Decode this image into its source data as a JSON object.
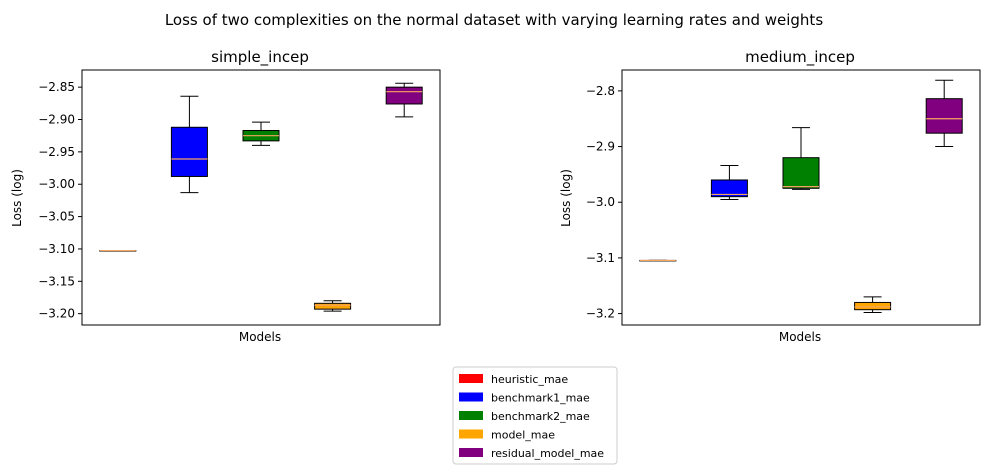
{
  "suptitle": "Loss of two complexities on the normal dataset with varying learning rates and weights",
  "legend": [
    {
      "label": "heuristic_mae",
      "color": "#ff0000"
    },
    {
      "label": "benchmark1_mae",
      "color": "#0000ff"
    },
    {
      "label": "benchmark2_mae",
      "color": "#008000"
    },
    {
      "label": "model_mae",
      "color": "#ffa500"
    },
    {
      "label": "residual_model_mae",
      "color": "#800080"
    }
  ],
  "median_color": "#f4a460",
  "chart_data": [
    {
      "type": "box",
      "title": "simple_incep",
      "xlabel": "Models",
      "ylabel": "Loss (log)",
      "ylim": [
        -3.2175,
        -2.8235
      ],
      "yticks": [
        -2.85,
        -2.9,
        -2.95,
        -3.0,
        -3.05,
        -3.1,
        -3.15,
        -3.2
      ],
      "ytick_labels": [
        "−2.85",
        "−2.90",
        "−2.95",
        "−3.00",
        "−3.05",
        "−3.10",
        "−3.15",
        "−3.20"
      ],
      "boxes": [
        {
          "name": "heuristic_mae",
          "color": "#ff0000",
          "whislo": -3.1025,
          "q1": -3.1025,
          "med": -3.1025,
          "q3": -3.1025,
          "whishi": -3.1025
        },
        {
          "name": "benchmark1_mae",
          "color": "#0000ff",
          "whislo": -3.013,
          "q1": -2.988,
          "med": -2.961,
          "q3": -2.912,
          "whishi": -2.864
        },
        {
          "name": "benchmark2_mae",
          "color": "#008000",
          "whislo": -2.94,
          "q1": -2.933,
          "med": -2.925,
          "q3": -2.917,
          "whishi": -2.904
        },
        {
          "name": "model_mae",
          "color": "#ffa500",
          "whislo": -3.196,
          "q1": -3.193,
          "med": -3.187,
          "q3": -3.184,
          "whishi": -3.18
        },
        {
          "name": "residual_model_mae",
          "color": "#800080",
          "whislo": -2.896,
          "q1": -2.876,
          "med": -2.857,
          "q3": -2.85,
          "whishi": -2.844
        }
      ]
    },
    {
      "type": "box",
      "title": "medium_incep",
      "xlabel": "Models",
      "ylabel": "Loss (log)",
      "ylim": [
        -3.2205,
        -2.7625
      ],
      "yticks": [
        -2.8,
        -2.9,
        -3.0,
        -3.1,
        -3.2
      ],
      "ytick_labels": [
        "−2.8",
        "−2.9",
        "−3.0",
        "−3.1",
        "−3.2"
      ],
      "boxes": [
        {
          "name": "heuristic_mae",
          "color": "#ff0000",
          "whislo": -3.1045,
          "q1": -3.1045,
          "med": -3.1045,
          "q3": -3.1045,
          "whishi": -3.1045
        },
        {
          "name": "benchmark1_mae",
          "color": "#0000ff",
          "whislo": -2.995,
          "q1": -2.99,
          "med": -2.986,
          "q3": -2.96,
          "whishi": -2.934
        },
        {
          "name": "benchmark2_mae",
          "color": "#008000",
          "whislo": -2.977,
          "q1": -2.975,
          "med": -2.972,
          "q3": -2.92,
          "whishi": -2.866
        },
        {
          "name": "model_mae",
          "color": "#ffa500",
          "whislo": -3.198,
          "q1": -3.193,
          "med": -3.188,
          "q3": -3.18,
          "whishi": -3.17
        },
        {
          "name": "residual_model_mae",
          "color": "#800080",
          "whislo": -2.9,
          "q1": -2.876,
          "med": -2.85,
          "q3": -2.814,
          "whishi": -2.781
        }
      ]
    }
  ]
}
